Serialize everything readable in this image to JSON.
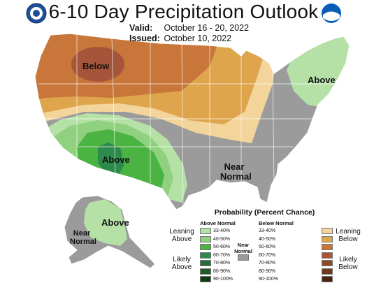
{
  "title": "6-10 Day Precipitation Outlook",
  "valid_label": "Valid:",
  "valid_dates": "October 16 - 20, 2022",
  "issued_label": "Issued:",
  "issued_date": "October 10, 2022",
  "map_labels": {
    "below": "Below",
    "above_northeast": "Above",
    "above_southwest": "Above",
    "near_normal_southeast": "Near Normal",
    "above_alaska": "Above",
    "near_normal_alaska": "Near Normal"
  },
  "legend": {
    "title": "Probability (Percent Chance)",
    "above_header": "Above Normal",
    "below_header": "Below Normal",
    "near_header": "Near Normal",
    "leaning_above": "Leaning Above",
    "likely_above": "Likely Above",
    "leaning_below": "Leaning Below",
    "likely_below": "Likely Below",
    "ranges": [
      "33-40%",
      "40-50%",
      "50-60%",
      "60-70%",
      "70-80%",
      "80-90%",
      "90-100%"
    ],
    "above_colors": [
      "#b5e1a7",
      "#8fd17e",
      "#4bb342",
      "#2e8a4c",
      "#2a6b3a",
      "#1f5a2a",
      "#0f3b14"
    ],
    "below_colors": [
      "#f3d59b",
      "#dea54d",
      "#c9763a",
      "#a6553a",
      "#8c4a2c",
      "#6d3a1c",
      "#4a2410"
    ],
    "near_color": "#9b9b9b"
  },
  "colors": {
    "near_normal": "#9b9b9b",
    "below_light": "#f3d59b",
    "below_medium": "#dea54d",
    "below_strong": "#c9763a",
    "below_stronger": "#a6553a",
    "above_light": "#b5e1a7",
    "above_medium": "#8fd17e",
    "above_strong": "#4bb342",
    "above_stronger": "#2e8a4c"
  }
}
